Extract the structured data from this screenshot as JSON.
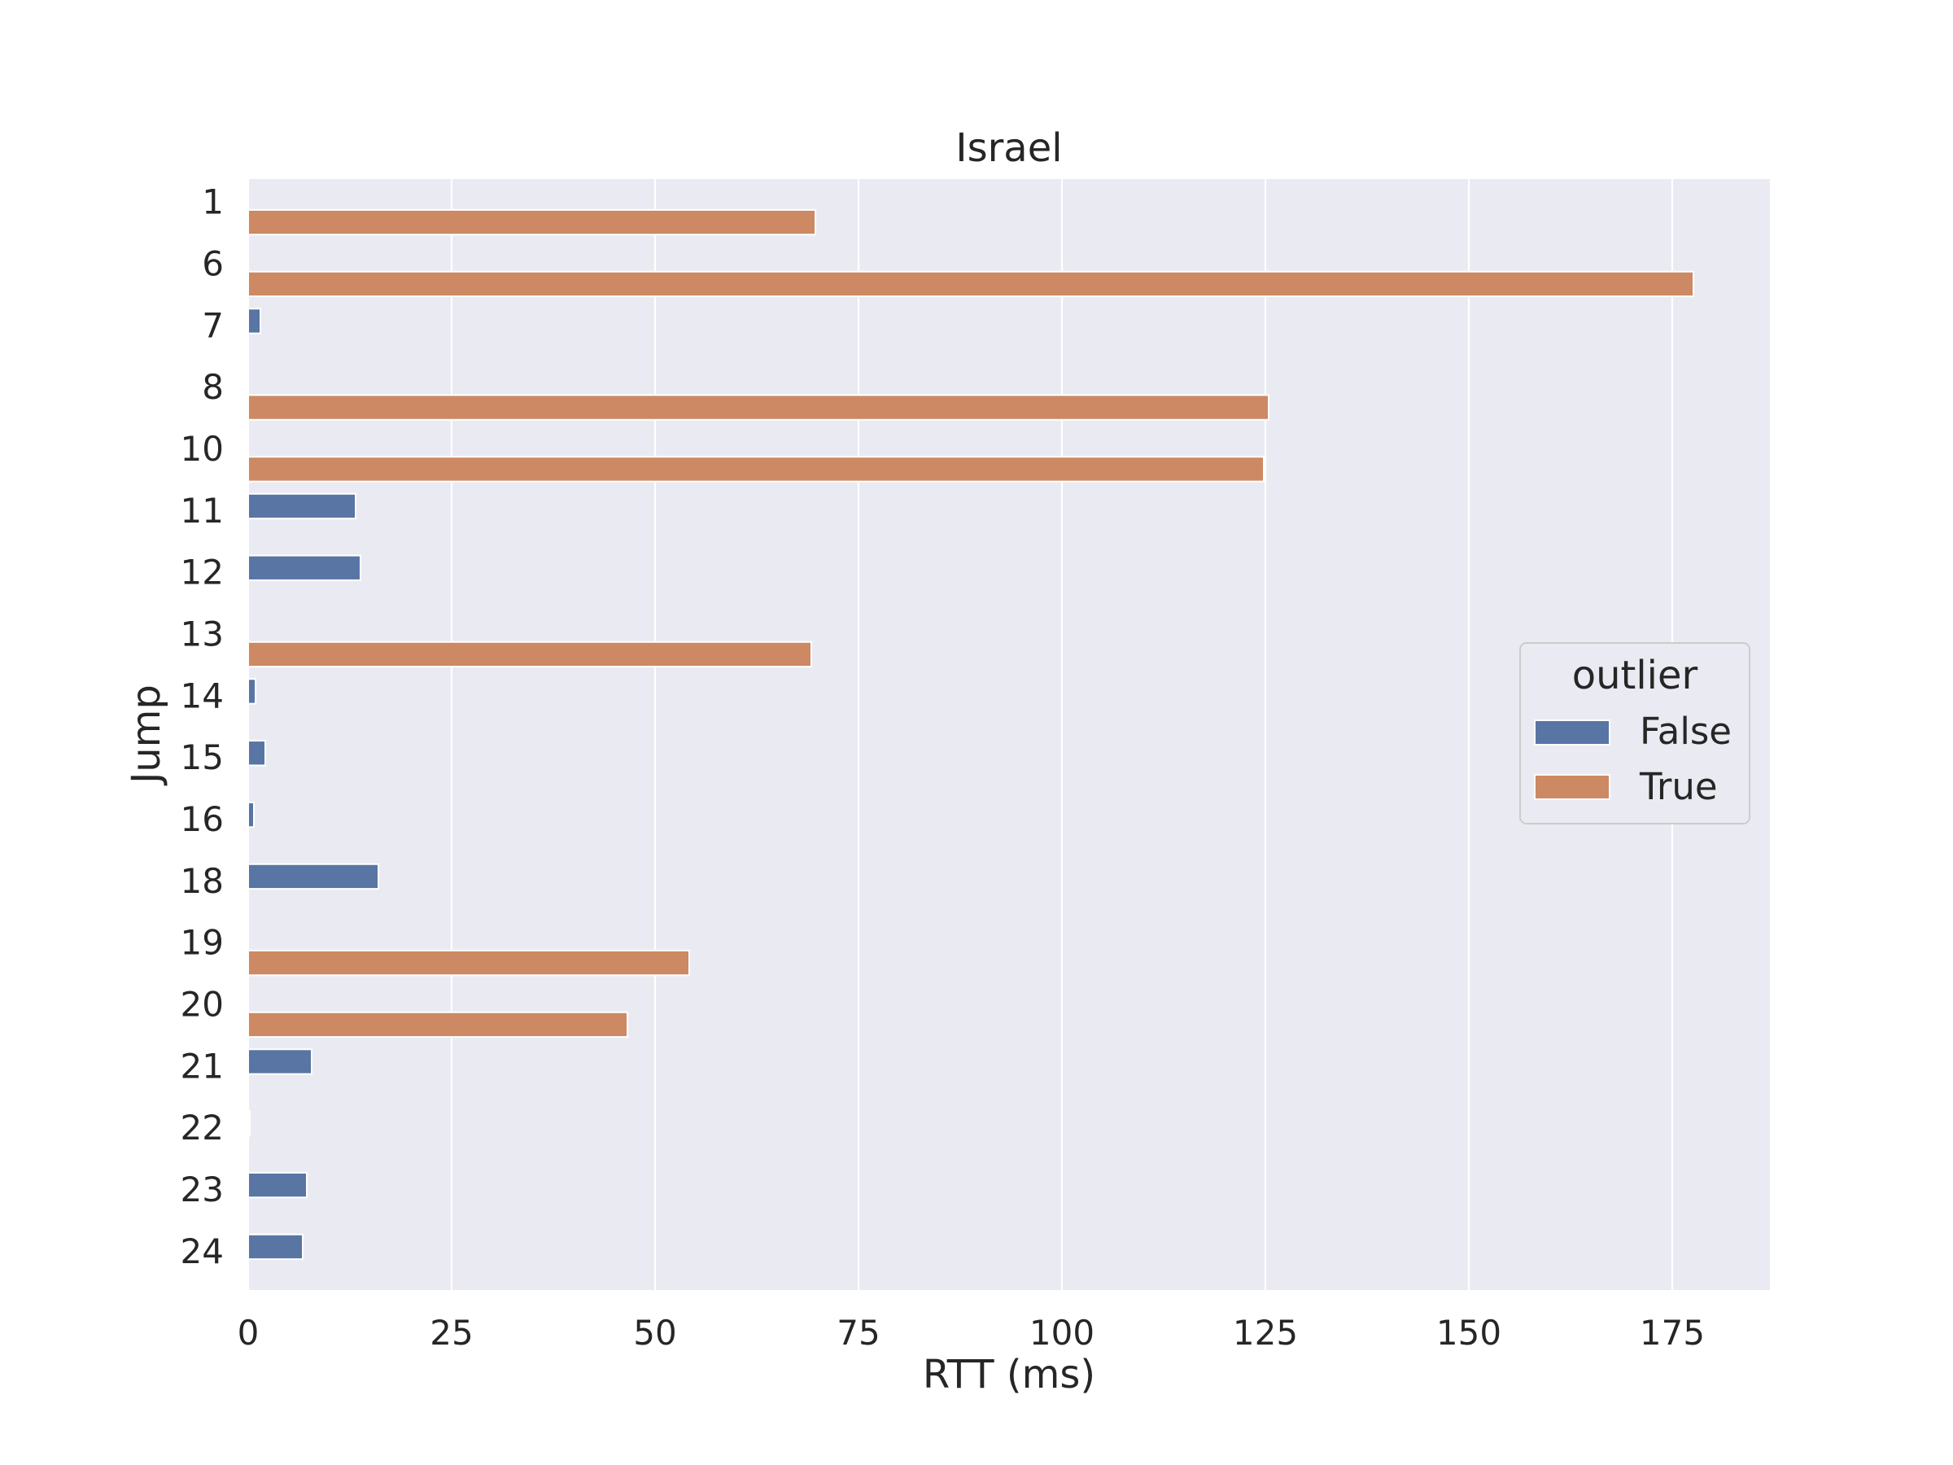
{
  "chart_data": {
    "type": "bar",
    "orientation": "horizontal",
    "title": "Israel",
    "xlabel": "RTT (ms)",
    "ylabel": "Jump",
    "xlim": [
      0,
      187
    ],
    "x_ticks": [
      0,
      25,
      50,
      75,
      100,
      125,
      150,
      175
    ],
    "grid": true,
    "categories": [
      "1",
      "6",
      "7",
      "8",
      "10",
      "11",
      "12",
      "13",
      "14",
      "15",
      "16",
      "18",
      "19",
      "20",
      "21",
      "22",
      "23",
      "24"
    ],
    "legend": {
      "title": "outlier",
      "placement": "center-right"
    },
    "series": [
      {
        "name": "False",
        "color": "#5875a4",
        "values": [
          null,
          null,
          1.5,
          null,
          null,
          13.2,
          13.8,
          null,
          0.9,
          2.1,
          0.7,
          16.0,
          null,
          null,
          7.8,
          0.2,
          7.2,
          6.7
        ]
      },
      {
        "name": "True",
        "color": "#cc8963",
        "values": [
          69.7,
          177.6,
          null,
          125.4,
          124.8,
          null,
          null,
          69.2,
          null,
          null,
          null,
          null,
          54.2,
          46.6,
          null,
          null,
          null,
          null
        ]
      }
    ]
  }
}
